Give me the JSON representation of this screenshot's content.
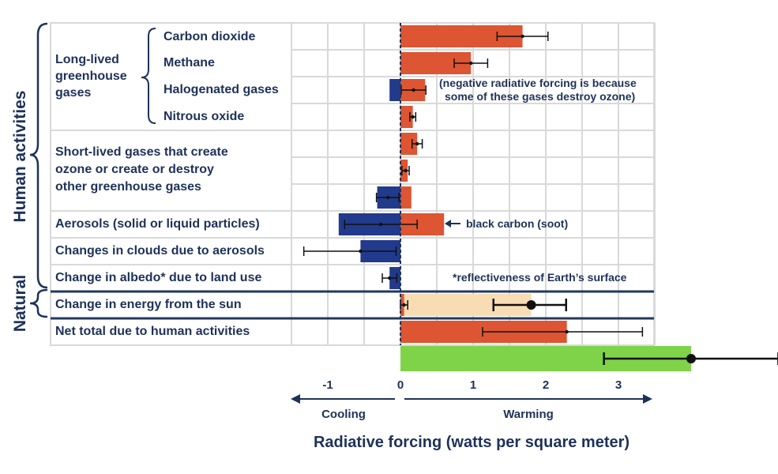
{
  "chart_data": {
    "type": "bar",
    "title": "",
    "xlabel": "Radiative forcing (watts per square meter)",
    "ylabel": "",
    "xlim": [
      -1.5,
      3.5
    ],
    "xticks": [
      -1,
      0,
      1,
      2,
      3
    ],
    "direction_labels": {
      "cooling": "Cooling",
      "warming": "Warming"
    },
    "colors": {
      "positive": "#dd5532",
      "negative": "#213a8c",
      "solar": "#f8dcb4",
      "net_total_extension": "#7ed348",
      "grid": "#d9d9d9",
      "text": "#1e3258",
      "divider": "#23395d"
    },
    "sections": {
      "human_activities": "Human activities",
      "natural": "Natural"
    },
    "group_labels": [
      {
        "key": "long_lived",
        "lines": [
          "Long-lived",
          "greenhouse",
          "gases"
        ]
      },
      {
        "key": "short_lived",
        "lines": [
          "Short-lived gases that create",
          "ozone or create or destroy",
          "other greenhouse gases"
        ]
      }
    ],
    "rows": [
      {
        "label": "Carbon dioxide",
        "bars": [
          {
            "value": 1.68,
            "sign": "positive"
          }
        ],
        "errors": [
          {
            "center": 1.68,
            "low": 1.33,
            "high": 2.03,
            "size": "small"
          }
        ]
      },
      {
        "label": "Methane",
        "bars": [
          {
            "value": 0.97,
            "sign": "positive"
          }
        ],
        "errors": [
          {
            "center": 0.97,
            "low": 0.74,
            "high": 1.2,
            "size": "small"
          }
        ]
      },
      {
        "label": "Halogenated gases",
        "bars": [
          {
            "value": 0.34,
            "sign": "positive"
          },
          {
            "value": -0.15,
            "sign": "negative"
          }
        ],
        "errors": [
          {
            "center": 0.18,
            "low": 0.01,
            "high": 0.35,
            "size": "small"
          }
        ]
      },
      {
        "label": "Nitrous oxide",
        "bars": [
          {
            "value": 0.17,
            "sign": "positive"
          }
        ],
        "errors": [
          {
            "center": 0.17,
            "low": 0.13,
            "high": 0.21,
            "size": "small"
          }
        ]
      },
      {
        "label": "",
        "bars": [
          {
            "value": 0.23,
            "sign": "positive"
          }
        ],
        "errors": [
          {
            "center": 0.23,
            "low": 0.16,
            "high": 0.3,
            "size": "small"
          }
        ]
      },
      {
        "label": "",
        "bars": [
          {
            "value": 0.1,
            "sign": "positive"
          }
        ],
        "errors": [
          {
            "center": 0.07,
            "low": 0.02,
            "high": 0.12,
            "size": "small"
          }
        ]
      },
      {
        "label": "",
        "bars": [
          {
            "value": 0.15,
            "sign": "positive"
          },
          {
            "value": -0.32,
            "sign": "negative"
          }
        ],
        "errors": [
          {
            "center": -0.17,
            "low": -0.33,
            "high": -0.02,
            "size": "small"
          }
        ]
      },
      {
        "label": "Aerosols (solid or liquid particles)",
        "bars": [
          {
            "value": 0.6,
            "sign": "positive"
          },
          {
            "value": -0.85,
            "sign": "negative"
          }
        ],
        "errors": [
          {
            "center": -0.27,
            "low": -0.77,
            "high": 0.23,
            "size": "small"
          }
        ]
      },
      {
        "label": "Changes in clouds due to aerosols",
        "bars": [
          {
            "value": -0.55,
            "sign": "negative"
          }
        ],
        "errors": [
          {
            "center": -0.55,
            "low": -1.33,
            "high": -0.06,
            "size": "small"
          }
        ]
      },
      {
        "label": "Change in albedo* due to land use",
        "bars": [
          {
            "value": -0.15,
            "sign": "negative"
          }
        ],
        "errors": [
          {
            "center": -0.15,
            "low": -0.25,
            "high": -0.05,
            "size": "small"
          }
        ]
      },
      {
        "label": "Change in energy from the sun",
        "bars": [
          {
            "value": 1.8,
            "sign": "solar"
          },
          {
            "value": 0.05,
            "sign": "positive"
          }
        ],
        "errors": [
          {
            "center": 0.05,
            "low": 0.0,
            "high": 0.1,
            "size": "small"
          },
          {
            "center": 1.8,
            "low": 1.28,
            "high": 2.28,
            "size": "large"
          }
        ]
      },
      {
        "label": "Net total due to human activities",
        "bars": [
          {
            "value": 2.29,
            "sign": "positive"
          }
        ],
        "errors": [
          {
            "center": 2.29,
            "low": 1.13,
            "high": 3.33,
            "size": "small"
          }
        ]
      },
      {
        "label": "",
        "bars": [
          {
            "value": 4.0,
            "sign": "extension"
          }
        ],
        "errors": [
          {
            "center": 4.0,
            "low": 2.8,
            "high": 5.2,
            "size": "large"
          }
        ]
      }
    ],
    "annotations": {
      "halogenated_note": [
        "(negative radiative forcing is because",
        "some of these gases destroy ozone)"
      ],
      "black_carbon": "black carbon (soot)",
      "reflectiveness": "*reflectiveness of Earth’s surface"
    }
  }
}
